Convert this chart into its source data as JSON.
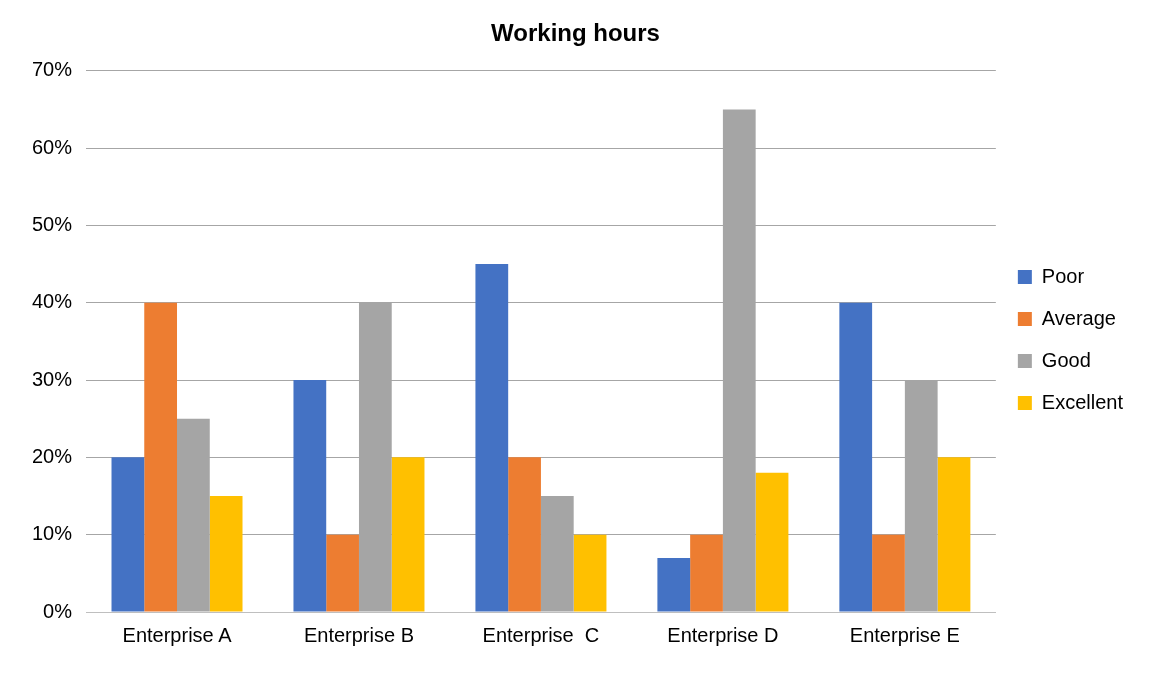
{
  "chart_data": {
    "type": "bar",
    "title": "Working hours",
    "categories": [
      "Enterprise A",
      "Enterprise B",
      "Enterprise  C",
      "Enterprise D",
      "Enterprise E"
    ],
    "series": [
      {
        "name": "Poor",
        "color": "#4472c4",
        "values": [
          20,
          30,
          45,
          7,
          40
        ]
      },
      {
        "name": "Average",
        "color": "#ed7d31",
        "values": [
          40,
          10,
          20,
          10,
          10
        ]
      },
      {
        "name": "Good",
        "color": "#a5a5a5",
        "values": [
          25,
          40,
          15,
          65,
          30
        ]
      },
      {
        "name": "Excellent",
        "color": "#ffc000",
        "values": [
          15,
          20,
          10,
          18,
          20
        ]
      }
    ],
    "ylim": [
      0,
      70
    ],
    "yticks": [
      {
        "value": 0,
        "label": "0%"
      },
      {
        "value": 10,
        "label": "10%"
      },
      {
        "value": 20,
        "label": "20%"
      },
      {
        "value": 30,
        "label": "30%"
      },
      {
        "value": 40,
        "label": "40%"
      },
      {
        "value": 50,
        "label": "50%"
      },
      {
        "value": 60,
        "label": "60%"
      },
      {
        "value": 70,
        "label": "70%"
      }
    ],
    "grid": "y",
    "legend": "right"
  }
}
